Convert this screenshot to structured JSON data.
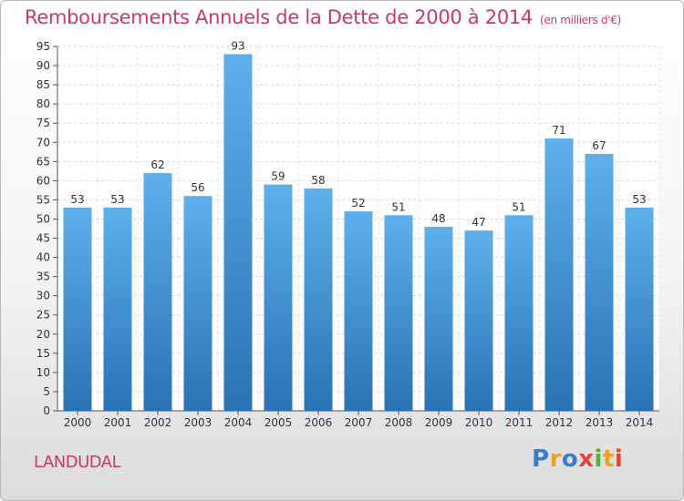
{
  "title": "Remboursements Annuels de la Dette de 2000 à 2014",
  "title_unit": "(en milliers d'€)",
  "commune": "LANDUDAL",
  "logo": "Proxiti",
  "colors": {
    "accent": "#c8386c",
    "bar_top": "#5eb0ec",
    "bar_bottom": "#2a72b4"
  },
  "chart_data": {
    "type": "bar",
    "title": "Remboursements Annuels de la Dette de 2000 à 2014",
    "subtitle": "(en milliers d'€)",
    "xlabel": "",
    "ylabel": "",
    "categories": [
      "2000",
      "2001",
      "2002",
      "2003",
      "2004",
      "2005",
      "2006",
      "2007",
      "2008",
      "2009",
      "2010",
      "2011",
      "2012",
      "2013",
      "2014"
    ],
    "values": [
      53,
      53,
      62,
      56,
      93,
      59,
      58,
      52,
      51,
      48,
      47,
      51,
      71,
      67,
      53
    ],
    "ylim": [
      0,
      95
    ],
    "yticks": [
      0,
      5,
      10,
      15,
      20,
      25,
      30,
      35,
      40,
      45,
      50,
      55,
      60,
      65,
      70,
      75,
      80,
      85,
      90,
      95
    ],
    "grid": true,
    "legend": "none"
  }
}
